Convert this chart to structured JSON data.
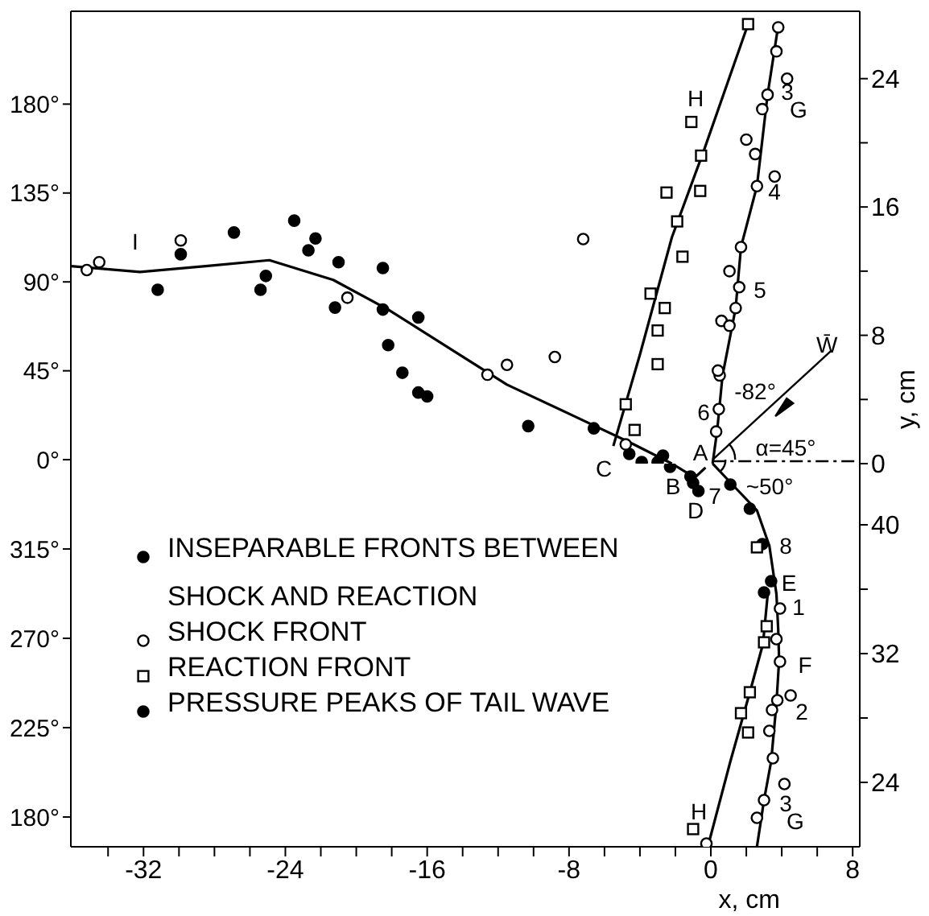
{
  "chart_data": [
    {
      "type": "scatter",
      "y2label": "y, cm",
      "tick_labels": "y",
      "xlim": [
        -36.1,
        8.4
      ],
      "ylim": [
        -2,
        227
      ],
      "yticks": [
        {
          "value": 180,
          "label": "180°"
        },
        {
          "value": 135,
          "label": "135°"
        },
        {
          "value": 90,
          "label": "90°"
        },
        {
          "value": 45,
          "label": "45°"
        },
        {
          "value": 0,
          "label": "0°"
        }
      ],
      "y2lim": [
        0,
        28.2
      ],
      "y2ticks": [
        24,
        {
          "value": 20,
          "label": null
        },
        16,
        {
          "value": 12,
          "label": null
        },
        8,
        {
          "value": 4,
          "label": null
        },
        0
      ],
      "series": [
        {
          "color": "#000000",
          "marker": "circle",
          "axis": "y2",
          "x": [
            -6.6,
            -4.6,
            -3.9,
            -3.0,
            -2.7
          ],
          "values": [
            2.2,
            0.6,
            0.1,
            0.1,
            0.5
          ]
        },
        {
          "color": "#ffffff",
          "marker": "circle",
          "axis": "y2",
          "x": [
            -7.2,
            -4.8,
            0.3,
            0.45,
            0.5,
            0.4,
            0.6,
            1.05,
            1.4,
            1.05,
            1.6,
            1.7,
            2.6,
            3.6,
            2.5,
            2.0,
            2.9,
            3.2,
            4.3,
            3.7,
            3.8
          ],
          "values": [
            14,
            1.2,
            2.0,
            3.4,
            5.5,
            5.8,
            8.9,
            8.6,
            9.7,
            12.0,
            11.0,
            13.5,
            17.3,
            17.9,
            19.3,
            20.2,
            22.1,
            23.0,
            24.0,
            25.7,
            27.2
          ]
        },
        {
          "color": "#ffffff",
          "marker": "square",
          "axis": "y2",
          "x": [
            -4.8,
            -4.3,
            -3.0,
            -3.0,
            -2.6,
            -3.4,
            -1.6,
            -1.9,
            -2.5,
            -0.6,
            -0.55,
            -1.1,
            2.1
          ],
          "values": [
            3.7,
            2.1,
            6.2,
            8.3,
            9.7,
            10.6,
            12.9,
            15.1,
            16.9,
            17.0,
            19.2,
            21.3,
            27.4
          ]
        },
        {
          "name": "PRESSURE PEAKS OF TAIL WAVE",
          "color": "#000000",
          "marker": "circle",
          "axis": "y",
          "x": [
            -31.2,
            -29.9,
            -26.9,
            -25.4,
            -25.1,
            -23.5,
            -22.7,
            -22.3,
            -21.2,
            -21.0,
            -18.5,
            -18.5,
            -18.2,
            -17.4,
            -16.5,
            -16.5,
            -16.0,
            -10.3
          ],
          "values": [
            86,
            104,
            115,
            86,
            93,
            121,
            106,
            112,
            77,
            100,
            97,
            76,
            58,
            44,
            72,
            34,
            32,
            17
          ]
        },
        {
          "color": "#ffffff",
          "marker": "circle",
          "axis": "y",
          "x": [
            -35.2,
            -34.5,
            -29.9,
            -20.5,
            -12.6,
            -11.5,
            -8.8
          ],
          "values": [
            96,
            100,
            111,
            82,
            43,
            48,
            52
          ]
        },
        {
          "type": "line",
          "color": "#000000",
          "marker": "none",
          "axis": "y",
          "x": [
            -36.1,
            -32.2,
            -28.5,
            -24.9,
            -21.3,
            -18.2,
            -14.5,
            -11.5,
            -7.7,
            -4.4,
            -2.2
          ],
          "values": [
            98,
            95,
            98,
            101,
            91,
            76,
            55,
            38,
            22,
            8,
            -2
          ]
        },
        {
          "type": "line",
          "color": "#000000",
          "marker": "none",
          "axis": "y2",
          "x": [
            0.1,
            0.36,
            0.66,
            1.4,
            1.7,
            2.6,
            3.2,
            3.8
          ],
          "values": [
            0,
            2.1,
            5.5,
            9.7,
            13.5,
            17.3,
            23.0,
            27.3
          ]
        },
        {
          "type": "line",
          "color": "#000000",
          "marker": "none",
          "axis": "y2",
          "x": [
            -5.5,
            -4.0,
            -2.2,
            -0.4,
            2.1
          ],
          "values": [
            1.1,
            6.8,
            14.1,
            19.5,
            27.4
          ]
        }
      ],
      "annotations": [
        "I",
        "H",
        "3",
        "G",
        "4",
        "5",
        "6",
        "-82°",
        {
          "text": "W̄",
          "x": 0.1,
          "y": 0
        },
        "A",
        "α=45°"
      ]
    },
    {
      "type": "scatter",
      "xlabel": "x, cm",
      "legend": "top left",
      "xlim": [
        -36.1,
        8.4
      ],
      "xticks": [
        {
          "value": -34,
          "label": null
        },
        -32,
        {
          "value": -30,
          "label": null
        },
        {
          "value": -28,
          "label": null
        },
        {
          "value": -26,
          "label": null
        },
        -24,
        {
          "value": -22,
          "label": null
        },
        {
          "value": -20,
          "label": null
        },
        {
          "value": -18,
          "label": null
        },
        -16,
        {
          "value": -14,
          "label": null
        },
        {
          "value": -12,
          "label": null
        },
        {
          "value": -10,
          "label": null
        },
        -8,
        {
          "value": -6,
          "label": null
        },
        {
          "value": -4,
          "label": null
        },
        {
          "value": -2,
          "label": null
        },
        0,
        {
          "value": 2,
          "label": null
        },
        {
          "value": 4,
          "label": null
        },
        {
          "value": 6,
          "label": null
        },
        8
      ],
      "ylim": [
        165,
        358
      ],
      "yticks": [
        {
          "value": 315,
          "label": "315°"
        },
        {
          "value": 270,
          "label": "270°"
        },
        {
          "value": 225,
          "label": "225°"
        },
        {
          "value": 180,
          "label": "180°"
        }
      ],
      "y2lim": [
        20,
        43.8
      ],
      "y2ticks": [
        40,
        {
          "value": 36,
          "label": null
        },
        32,
        {
          "value": 28,
          "label": null
        },
        24
      ],
      "series": [
        {
          "name": "INSEPARABLE FRONTS BETWEEN SHOCK AND REACTION",
          "color": "#000000",
          "marker": "circle",
          "axis": "y2",
          "x": [
            -2.3,
            -1.15,
            -1.0,
            -0.7,
            1.1,
            2.2,
            2.9,
            3.4,
            3.0
          ],
          "values": [
            43.6,
            43.0,
            42.6,
            42.1,
            42.5,
            41.0,
            38.8,
            36.5,
            35.8
          ]
        },
        {
          "name": "SHOCK FRONT",
          "color": "#ffffff",
          "marker": "circle",
          "axis": "y2",
          "x": [
            3.9,
            3.7,
            3.9,
            3.75,
            4.5,
            3.45,
            3.3,
            3.5,
            4.15,
            3.0,
            2.6,
            -0.25
          ],
          "values": [
            34.8,
            32.9,
            31.5,
            29.1,
            29.4,
            28.5,
            27.2,
            25.5,
            23.9,
            22.9,
            21.8,
            20.2
          ]
        },
        {
          "name": "REACTION FRONT",
          "color": "#ffffff",
          "marker": "square",
          "axis": "y2",
          "x": [
            2.6,
            3.15,
            3.0,
            2.2,
            1.7,
            2.1,
            -1.0
          ],
          "values": [
            38.6,
            33.7,
            32.7,
            29.6,
            28.3,
            27.1,
            21.1
          ]
        },
        {
          "type": "line",
          "color": "#000000",
          "marker": "none",
          "axis": "y",
          "x": [
            -2.2,
            -0.9,
            -0.3
          ],
          "values": [
            358,
            351,
            356
          ]
        },
        {
          "type": "line",
          "color": "#000000",
          "marker": "none",
          "axis": "y2",
          "x": [
            0.1,
            1.3,
            2.6,
            3.3,
            3.7,
            3.8,
            3.85,
            3.7,
            3.4,
            3.0,
            2.6
          ],
          "values": [
            43.8,
            42.4,
            40.9,
            38.7,
            35.7,
            33.5,
            31.6,
            28.9,
            25.3,
            22.9,
            20.0
          ]
        },
        {
          "type": "line",
          "color": "#000000",
          "marker": "none",
          "axis": "y2",
          "x": [
            3.2,
            2.94,
            2.2,
            1.1,
            -0.1
          ],
          "values": [
            35.6,
            32.6,
            29.6,
            25.3,
            20.3
          ]
        }
      ],
      "annotations": [
        "C",
        "B",
        "D",
        "7",
        "~50°",
        "8",
        "E",
        "1",
        "F",
        "2",
        "3",
        "G",
        "H"
      ]
    }
  ]
}
